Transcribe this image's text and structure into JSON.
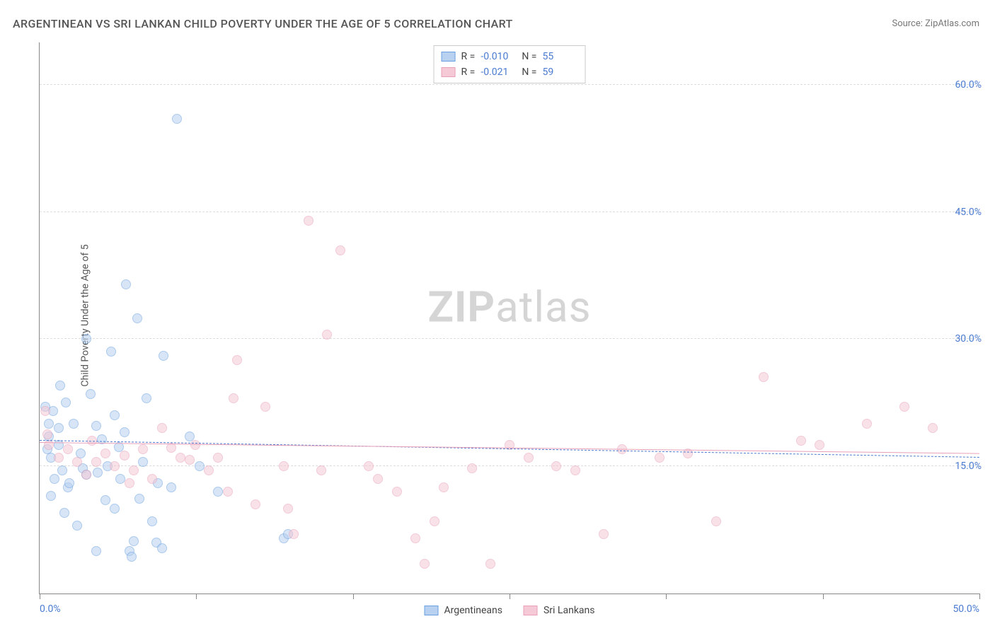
{
  "title": "ARGENTINEAN VS SRI LANKAN CHILD POVERTY UNDER THE AGE OF 5 CORRELATION CHART",
  "source": "Source: ZipAtlas.com",
  "ylabel": "Child Poverty Under the Age of 5",
  "watermark_bold": "ZIP",
  "watermark_rest": "atlas",
  "chart": {
    "type": "scatter",
    "background_color": "#ffffff",
    "grid_color": "#dddddd",
    "axis_color": "#888888",
    "text_color": "#555555",
    "tick_label_color": "#4a7bd0",
    "xlim": [
      0,
      50
    ],
    "ylim": [
      0,
      65
    ],
    "yticks": [
      15,
      30,
      45,
      60
    ],
    "ytick_labels": [
      "15.0%",
      "30.0%",
      "45.0%",
      "60.0%"
    ],
    "xticks": [
      0,
      8.33,
      16.67,
      25,
      33.33,
      41.67,
      50
    ],
    "xtick_labels_shown": {
      "0": "0.0%",
      "50": "50.0%"
    },
    "point_radius": 7,
    "point_stroke_width": 1,
    "series": [
      {
        "name": "Argentineans",
        "fill_color": "#b8d1f0",
        "stroke_color": "#6a9fe0",
        "fill_opacity": 0.55,
        "R": "-0.010",
        "N": "55",
        "trend": {
          "y_at_x0": 18.0,
          "y_at_xmax": 16.0,
          "dash": true,
          "color": "#4a7bd0",
          "width": 1.5
        },
        "points": [
          [
            0.5,
            20.0
          ],
          [
            0.5,
            18.5
          ],
          [
            0.7,
            21.5
          ],
          [
            0.4,
            17.0
          ],
          [
            1.0,
            17.5
          ],
          [
            0.6,
            16.0
          ],
          [
            1.2,
            14.5
          ],
          [
            0.8,
            13.5
          ],
          [
            1.5,
            12.5
          ],
          [
            1.0,
            19.5
          ],
          [
            1.4,
            22.5
          ],
          [
            1.8,
            20.0
          ],
          [
            2.5,
            30.0
          ],
          [
            2.2,
            16.5
          ],
          [
            2.3,
            14.8
          ],
          [
            2.7,
            23.5
          ],
          [
            3.0,
            19.8
          ],
          [
            3.3,
            18.2
          ],
          [
            3.1,
            14.3
          ],
          [
            3.5,
            11.0
          ],
          [
            3.6,
            15.0
          ],
          [
            4.0,
            21.0
          ],
          [
            3.8,
            28.5
          ],
          [
            4.2,
            17.3
          ],
          [
            4.3,
            13.5
          ],
          [
            4.5,
            19.0
          ],
          [
            4.6,
            36.5
          ],
          [
            4.8,
            5.0
          ],
          [
            4.9,
            4.3
          ],
          [
            5.0,
            6.2
          ],
          [
            5.2,
            32.5
          ],
          [
            5.3,
            11.2
          ],
          [
            5.5,
            15.5
          ],
          [
            5.7,
            23.0
          ],
          [
            6.0,
            8.5
          ],
          [
            6.3,
            13.0
          ],
          [
            6.2,
            6.0
          ],
          [
            6.5,
            5.3
          ],
          [
            6.6,
            28.0
          ],
          [
            7.0,
            12.5
          ],
          [
            7.3,
            56.0
          ],
          [
            8.5,
            15.0
          ],
          [
            8.0,
            18.5
          ],
          [
            9.5,
            12.0
          ],
          [
            4.0,
            10.0
          ],
          [
            2.0,
            8.0
          ],
          [
            1.3,
            9.5
          ],
          [
            0.6,
            11.5
          ],
          [
            0.3,
            22.0
          ],
          [
            1.1,
            24.5
          ],
          [
            13.0,
            6.5
          ],
          [
            13.2,
            7.0
          ],
          [
            3.0,
            5.0
          ],
          [
            2.5,
            14.0
          ],
          [
            1.6,
            13.0
          ]
        ]
      },
      {
        "name": "Sri Lankans",
        "fill_color": "#f5c9d6",
        "stroke_color": "#e8a0b8",
        "fill_opacity": 0.55,
        "R": "-0.021",
        "N": "59",
        "trend": {
          "y_at_x0": 17.8,
          "y_at_xmax": 16.5,
          "dash": false,
          "color": "#e8a0b8",
          "width": 1.8
        },
        "points": [
          [
            0.3,
            21.5
          ],
          [
            0.4,
            18.8
          ],
          [
            0.5,
            17.5
          ],
          [
            1.0,
            16.0
          ],
          [
            1.5,
            17.0
          ],
          [
            2.0,
            15.5
          ],
          [
            2.5,
            14.0
          ],
          [
            3.0,
            15.5
          ],
          [
            3.5,
            16.5
          ],
          [
            2.8,
            18.0
          ],
          [
            4.0,
            15.0
          ],
          [
            4.5,
            16.3
          ],
          [
            5.0,
            14.5
          ],
          [
            5.5,
            17.0
          ],
          [
            6.0,
            13.5
          ],
          [
            6.5,
            19.5
          ],
          [
            7.0,
            17.2
          ],
          [
            7.5,
            16.0
          ],
          [
            8.0,
            15.8
          ],
          [
            8.3,
            17.5
          ],
          [
            9.0,
            14.5
          ],
          [
            9.5,
            16.0
          ],
          [
            10.0,
            12.0
          ],
          [
            10.3,
            23.0
          ],
          [
            10.5,
            27.5
          ],
          [
            11.5,
            10.5
          ],
          [
            12.0,
            22.0
          ],
          [
            13.0,
            15.0
          ],
          [
            13.2,
            10.0
          ],
          [
            14.3,
            44.0
          ],
          [
            15.0,
            14.5
          ],
          [
            15.3,
            30.5
          ],
          [
            16.0,
            40.5
          ],
          [
            17.5,
            15.0
          ],
          [
            18.0,
            13.5
          ],
          [
            19.0,
            12.0
          ],
          [
            20.0,
            6.5
          ],
          [
            20.5,
            3.5
          ],
          [
            21.5,
            12.5
          ],
          [
            23.0,
            14.8
          ],
          [
            24.0,
            3.5
          ],
          [
            25.0,
            17.5
          ],
          [
            26.0,
            16.0
          ],
          [
            27.5,
            15.0
          ],
          [
            28.5,
            14.5
          ],
          [
            30.0,
            7.0
          ],
          [
            31.0,
            17.0
          ],
          [
            33.0,
            16.0
          ],
          [
            34.5,
            16.5
          ],
          [
            36.0,
            8.5
          ],
          [
            38.5,
            25.5
          ],
          [
            40.5,
            18.0
          ],
          [
            41.5,
            17.5
          ],
          [
            44.0,
            20.0
          ],
          [
            46.0,
            22.0
          ],
          [
            47.5,
            19.5
          ],
          [
            13.5,
            7.0
          ],
          [
            21.0,
            8.5
          ],
          [
            4.8,
            13.0
          ]
        ]
      }
    ]
  },
  "bottom_legend": [
    "Argentineans",
    "Sri Lankans"
  ]
}
